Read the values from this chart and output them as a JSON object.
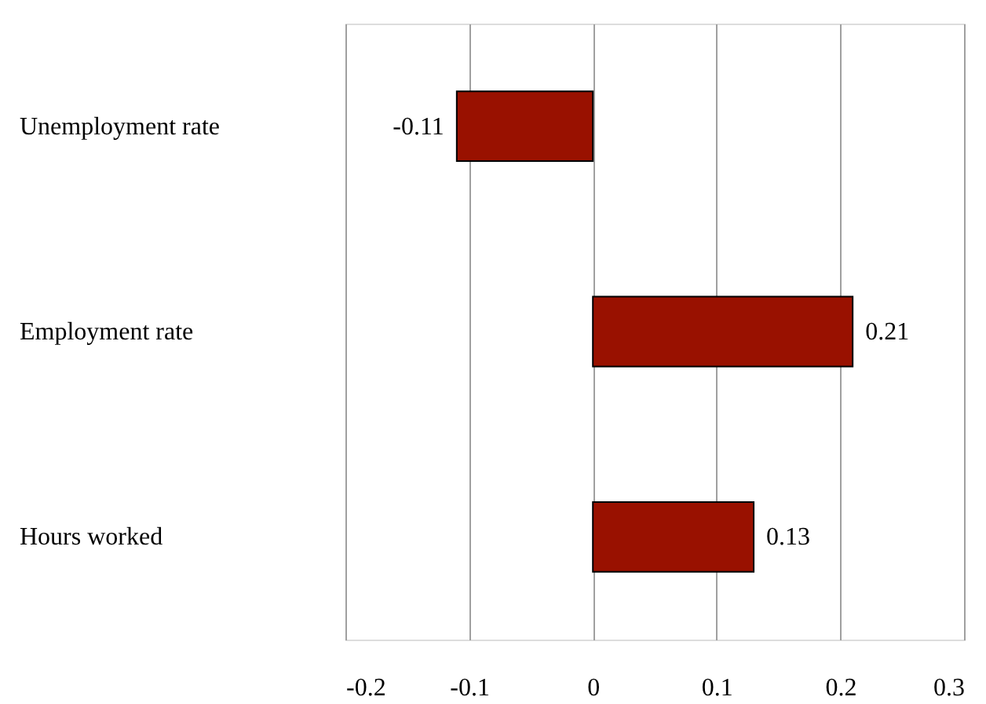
{
  "chart_data": {
    "type": "bar",
    "orientation": "horizontal",
    "categories": [
      "Unemployment rate",
      "Employment rate",
      "Hours worked"
    ],
    "values": [
      -0.11,
      0.21,
      0.13
    ],
    "color": "#991100",
    "xlim": [
      -0.2,
      0.3
    ],
    "xticks": [
      -0.2,
      -0.1,
      0,
      0.1,
      0.2,
      0.3
    ],
    "grid": "x",
    "data_labels": true
  }
}
